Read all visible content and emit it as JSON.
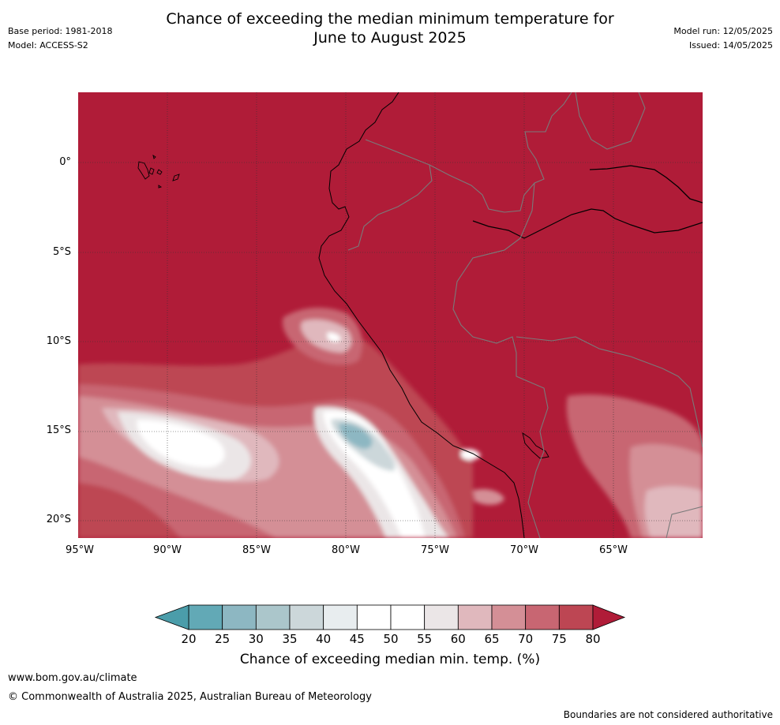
{
  "header": {
    "title_line1": "Chance of exceeding the median minimum temperature for",
    "title_line2": "June to August 2025",
    "base_period": "Base period: 1981-2018",
    "model": "Model: ACCESS-S2",
    "model_run": "Model run: 12/05/2025",
    "issued": "Issued: 14/05/2025"
  },
  "map": {
    "lat_labels": [
      "0°",
      "5°S",
      "10°S",
      "15°S",
      "20°S"
    ],
    "lon_labels": [
      "95°W",
      "90°W",
      "85°W",
      "80°W",
      "75°W",
      "70°W",
      "65°W"
    ],
    "background_color": "#b01c38"
  },
  "colorbar": {
    "ticks": [
      "20",
      "25",
      "30",
      "35",
      "40",
      "45",
      "50",
      "55",
      "60",
      "65",
      "70",
      "75",
      "80"
    ],
    "colors": [
      "#62a9b6",
      "#8db7c2",
      "#abc6cb",
      "#ccd7da",
      "#e8edef",
      "#ffffff",
      "#ffffff",
      "#ebe6e7",
      "#e0b8bd",
      "#d48f96",
      "#c86672",
      "#bd4653"
    ],
    "low_extend_color": "#4b9daa",
    "high_extend_color": "#b01c38",
    "title": "Chance of exceeding median min. temp. (%)"
  },
  "footer": {
    "url": "www.bom.gov.au/climate",
    "copyright": "© Commonwealth of Australia 2025, Australian Bureau of Meteorology",
    "disclaimer": "Boundaries are not considered authoritative"
  }
}
